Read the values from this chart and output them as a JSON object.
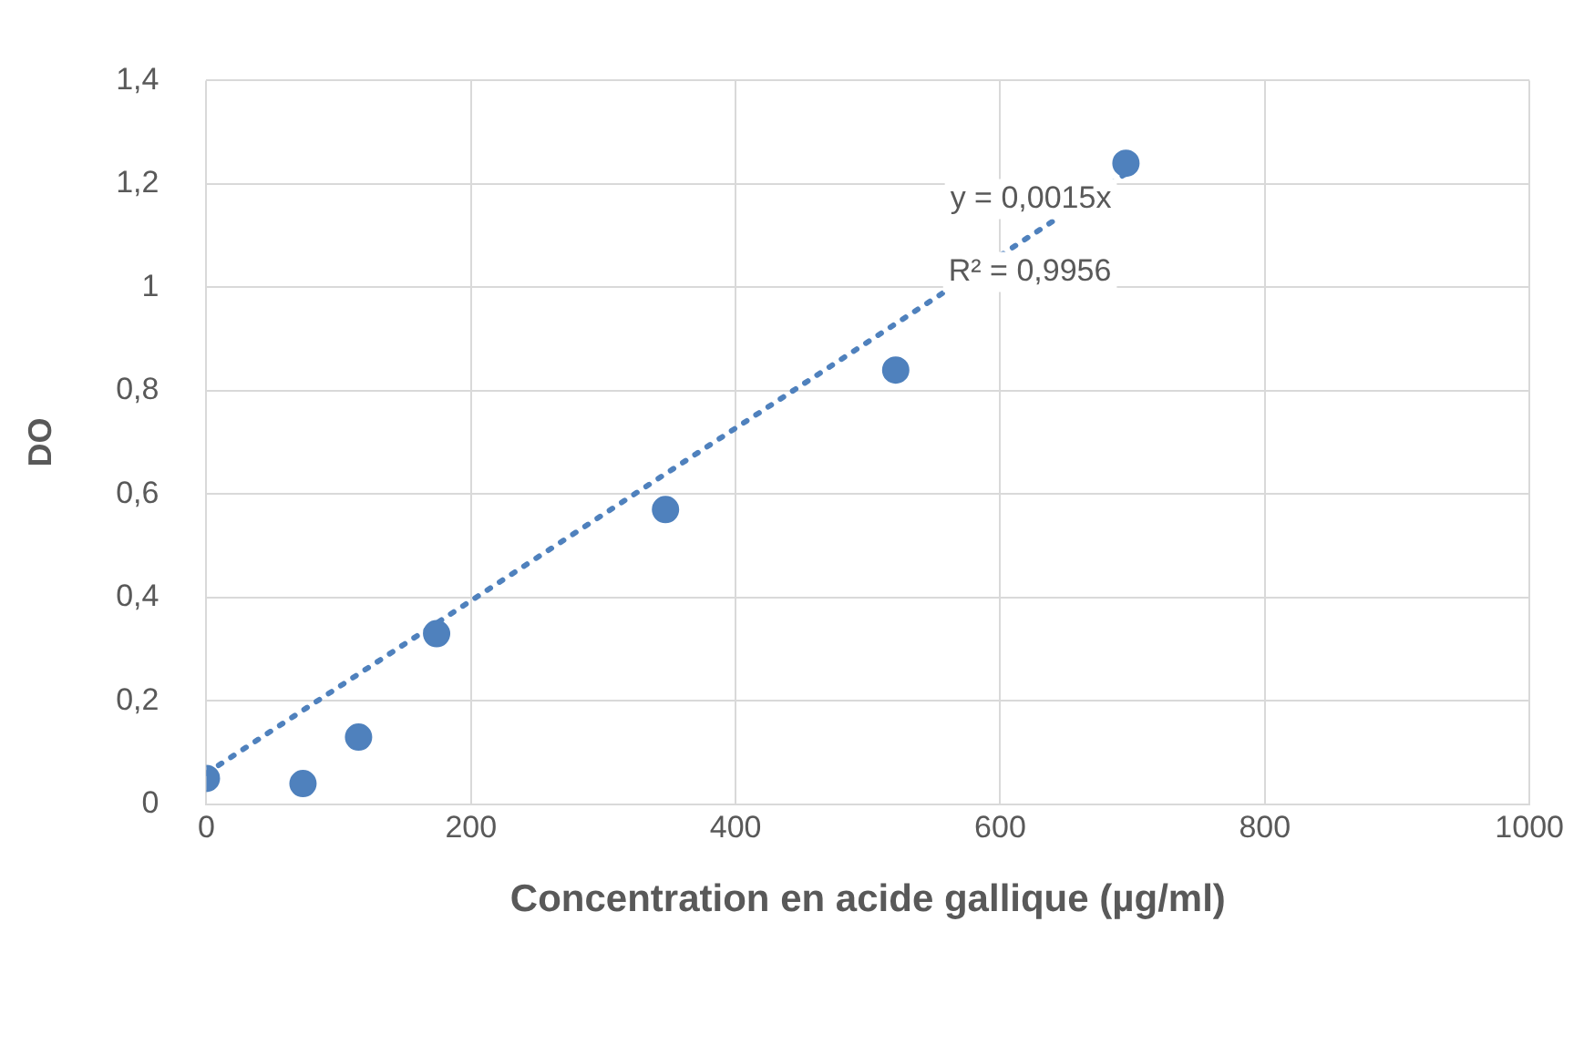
{
  "chart_data": {
    "type": "scatter",
    "xlabel": "Concentration en acide gallique (µg/ml)",
    "ylabel": "DO",
    "series": [
      {
        "color": "#4f81bd",
        "x": [
          0,
          73,
          115,
          174,
          347,
          521,
          695
        ],
        "values": [
          0.05,
          0.04,
          0.13,
          0.33,
          0.57,
          0.84,
          1.24
        ],
        "marker": "circle"
      },
      {
        "type": "line",
        "color": "#4f81bd",
        "x": [
          0,
          695
        ],
        "values": [
          0.06,
          1.22
        ],
        "line_style": "dotted",
        "marker": "none"
      }
    ],
    "xlim": [
      0,
      1000
    ],
    "xticks": [
      0,
      200,
      400,
      600,
      800,
      1000
    ],
    "ylim": [
      0,
      1.4
    ],
    "yticks": [
      0,
      {
        "value": 0.2,
        "label": "0,2"
      },
      {
        "value": 0.4,
        "label": "0,4"
      },
      {
        "value": 0.6,
        "label": "0,6"
      },
      {
        "value": 0.8,
        "label": "0,8"
      },
      1,
      {
        "value": 1.2,
        "label": "1,2"
      },
      {
        "value": 1.4,
        "label": "1,4"
      }
    ],
    "grid": true,
    "legend": false,
    "annotations": [
      "y = 0,0015x",
      "R² = 0,9956"
    ]
  }
}
